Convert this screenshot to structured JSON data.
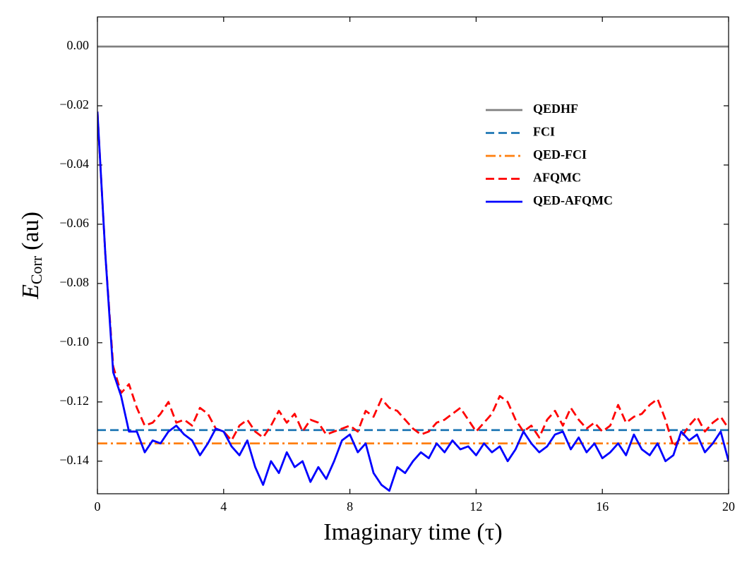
{
  "chart_data": {
    "type": "line",
    "xlabel": "Imaginary time (τ)",
    "ylabel_symbol": "E",
    "ylabel_subscript": "Corr",
    "ylabel_unit": "(au)",
    "xlim": [
      0,
      20
    ],
    "ylim": [
      -0.151,
      0.01
    ],
    "xticks": [
      0,
      4,
      8,
      12,
      16,
      20
    ],
    "yticks": [
      {
        "value": 0,
        "label": "0.00"
      },
      {
        "value": -0.02,
        "label": "−0.02"
      },
      {
        "value": -0.04,
        "label": "−0.04"
      },
      {
        "value": -0.06,
        "label": "−0.06"
      },
      {
        "value": -0.08,
        "label": "−0.08"
      },
      {
        "value": -0.1,
        "label": "−0.10"
      },
      {
        "value": -0.12,
        "label": "−0.12"
      },
      {
        "value": -0.14,
        "label": "−0.14"
      }
    ],
    "grid": false,
    "legend": "upper right",
    "series": [
      {
        "name": "QEDHF",
        "color": "#808080",
        "dash": "solid",
        "x": [
          0,
          20
        ],
        "values": [
          0,
          0
        ]
      },
      {
        "name": "FCI",
        "color": "#1f77b4",
        "dash": "dashed",
        "x": [
          0,
          20
        ],
        "values": [
          -0.1295,
          -0.1295
        ]
      },
      {
        "name": "QED-FCI",
        "color": "#ff7f0e",
        "dash": "dashdot",
        "x": [
          0,
          20
        ],
        "values": [
          -0.134,
          -0.134
        ]
      },
      {
        "name": "AFQMC",
        "color": "#ff0000",
        "dash": "dashed",
        "x": [
          0,
          0.25,
          0.5,
          0.75,
          1,
          1.25,
          1.5,
          1.75,
          2,
          2.25,
          2.5,
          2.75,
          3,
          3.25,
          3.5,
          3.75,
          4,
          4.25,
          4.5,
          4.75,
          5,
          5.25,
          5.5,
          5.75,
          6,
          6.25,
          6.5,
          6.75,
          7,
          7.25,
          7.5,
          7.75,
          8,
          8.25,
          8.5,
          8.75,
          9,
          9.25,
          9.5,
          9.75,
          10,
          10.25,
          10.5,
          10.75,
          11,
          11.25,
          11.5,
          11.75,
          12,
          12.25,
          12.5,
          12.75,
          13,
          13.25,
          13.5,
          13.75,
          14,
          14.25,
          14.5,
          14.75,
          15,
          15.25,
          15.5,
          15.75,
          16,
          16.25,
          16.5,
          16.75,
          17,
          17.25,
          17.5,
          17.75,
          18,
          18.25,
          18.5,
          18.75,
          19,
          19.25,
          19.5,
          19.75,
          20
        ],
        "values": [
          -0.022,
          -0.07,
          -0.108,
          -0.117,
          -0.114,
          -0.122,
          -0.128,
          -0.127,
          -0.124,
          -0.12,
          -0.127,
          -0.126,
          -0.128,
          -0.122,
          -0.124,
          -0.129,
          -0.13,
          -0.133,
          -0.128,
          -0.126,
          -0.13,
          -0.132,
          -0.128,
          -0.123,
          -0.127,
          -0.124,
          -0.13,
          -0.126,
          -0.127,
          -0.131,
          -0.13,
          -0.129,
          -0.128,
          -0.13,
          -0.123,
          -0.125,
          -0.119,
          -0.122,
          -0.123,
          -0.126,
          -0.129,
          -0.131,
          -0.13,
          -0.127,
          -0.126,
          -0.124,
          -0.122,
          -0.126,
          -0.13,
          -0.127,
          -0.124,
          -0.118,
          -0.12,
          -0.126,
          -0.13,
          -0.128,
          -0.132,
          -0.126,
          -0.123,
          -0.128,
          -0.122,
          -0.126,
          -0.129,
          -0.127,
          -0.13,
          -0.128,
          -0.121,
          -0.127,
          -0.125,
          -0.124,
          -0.121,
          -0.119,
          -0.126,
          -0.135,
          -0.132,
          -0.128,
          -0.125,
          -0.13,
          -0.127,
          -0.125,
          -0.129
        ]
      },
      {
        "name": "QED-AFQMC",
        "color": "#0000ff",
        "dash": "solid",
        "x": [
          0,
          0.25,
          0.5,
          0.75,
          1,
          1.25,
          1.5,
          1.75,
          2,
          2.25,
          2.5,
          2.75,
          3,
          3.25,
          3.5,
          3.75,
          4,
          4.25,
          4.5,
          4.75,
          5,
          5.25,
          5.5,
          5.75,
          6,
          6.25,
          6.5,
          6.75,
          7,
          7.25,
          7.5,
          7.75,
          8,
          8.25,
          8.5,
          8.75,
          9,
          9.25,
          9.5,
          9.75,
          10,
          10.25,
          10.5,
          10.75,
          11,
          11.25,
          11.5,
          11.75,
          12,
          12.25,
          12.5,
          12.75,
          13,
          13.25,
          13.5,
          13.75,
          14,
          14.25,
          14.5,
          14.75,
          15,
          15.25,
          15.5,
          15.75,
          16,
          16.25,
          16.5,
          16.75,
          17,
          17.25,
          17.5,
          17.75,
          18,
          18.25,
          18.5,
          18.75,
          19,
          19.25,
          19.5,
          19.75,
          20
        ],
        "values": [
          -0.022,
          -0.07,
          -0.11,
          -0.118,
          -0.13,
          -0.13,
          -0.137,
          -0.133,
          -0.134,
          -0.13,
          -0.128,
          -0.131,
          -0.133,
          -0.138,
          -0.134,
          -0.129,
          -0.13,
          -0.135,
          -0.138,
          -0.133,
          -0.142,
          -0.148,
          -0.14,
          -0.144,
          -0.137,
          -0.142,
          -0.14,
          -0.147,
          -0.142,
          -0.146,
          -0.14,
          -0.133,
          -0.131,
          -0.137,
          -0.134,
          -0.144,
          -0.148,
          -0.15,
          -0.142,
          -0.144,
          -0.14,
          -0.137,
          -0.139,
          -0.134,
          -0.137,
          -0.133,
          -0.136,
          -0.135,
          -0.138,
          -0.134,
          -0.137,
          -0.135,
          -0.14,
          -0.136,
          -0.13,
          -0.134,
          -0.137,
          -0.135,
          -0.131,
          -0.13,
          -0.136,
          -0.132,
          -0.137,
          -0.134,
          -0.139,
          -0.137,
          -0.134,
          -0.138,
          -0.131,
          -0.136,
          -0.138,
          -0.134,
          -0.14,
          -0.138,
          -0.13,
          -0.133,
          -0.131,
          -0.137,
          -0.134,
          -0.13,
          -0.14
        ]
      }
    ]
  }
}
